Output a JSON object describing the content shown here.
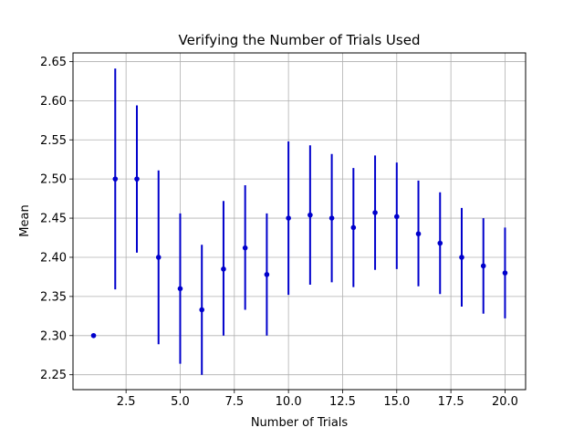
{
  "chart_data": {
    "type": "scatter",
    "title": "Verifying the Number of Trials Used",
    "xlabel": "Number of Trials",
    "ylabel": "Mean",
    "xlim": [
      0.05,
      20.95
    ],
    "ylim": [
      2.231,
      2.661
    ],
    "grid": true,
    "color": "#0000cc",
    "xticks": [
      2.5,
      5.0,
      7.5,
      10.0,
      12.5,
      15.0,
      17.5,
      20.0
    ],
    "xtick_labels": [
      "2.5",
      "5.0",
      "7.5",
      "10.0",
      "12.5",
      "15.0",
      "17.5",
      "20.0"
    ],
    "yticks": [
      2.25,
      2.3,
      2.35,
      2.4,
      2.45,
      2.5,
      2.55,
      2.6,
      2.65
    ],
    "ytick_labels": [
      "2.25",
      "2.30",
      "2.35",
      "2.40",
      "2.45",
      "2.50",
      "2.55",
      "2.60",
      "2.65"
    ],
    "series": [
      {
        "x": [
          1,
          2,
          3,
          4,
          5,
          6,
          7,
          8,
          9,
          10,
          11,
          12,
          13,
          14,
          15,
          16,
          17,
          18,
          19,
          20
        ],
        "y": [
          2.3,
          2.5,
          2.5,
          2.4,
          2.36,
          2.333,
          2.385,
          2.412,
          2.378,
          2.45,
          2.454,
          2.45,
          2.438,
          2.457,
          2.452,
          2.43,
          2.418,
          2.4,
          2.389,
          2.38
        ],
        "err_low": [
          2.3,
          2.359,
          2.406,
          2.289,
          2.264,
          2.25,
          2.3,
          2.333,
          2.3,
          2.352,
          2.365,
          2.368,
          2.362,
          2.384,
          2.385,
          2.363,
          2.353,
          2.337,
          2.328,
          2.322
        ],
        "err_high": [
          2.3,
          2.641,
          2.594,
          2.511,
          2.456,
          2.416,
          2.472,
          2.492,
          2.456,
          2.548,
          2.543,
          2.532,
          2.514,
          2.53,
          2.521,
          2.498,
          2.483,
          2.463,
          2.45,
          2.438
        ]
      }
    ]
  }
}
